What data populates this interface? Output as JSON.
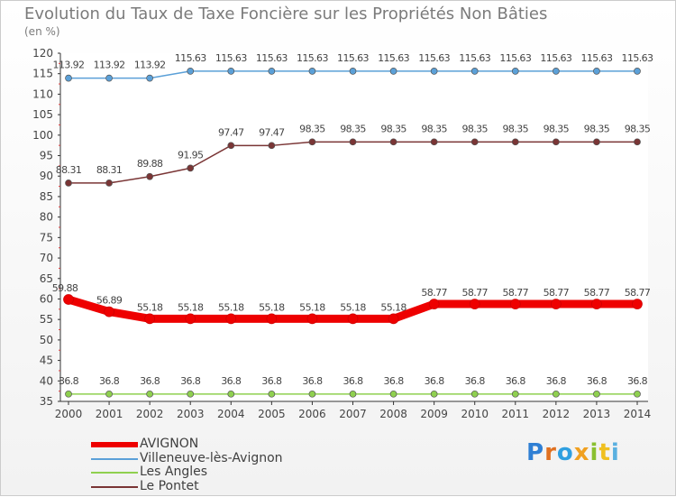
{
  "chart_data": {
    "type": "line",
    "title": "Evolution du Taux de Taxe Foncière sur les Propriétés Non Bâties",
    "ylabel": "(en %)",
    "xlabel": "",
    "x": [
      "2000",
      "2001",
      "2002",
      "2003",
      "2004",
      "2005",
      "2006",
      "2007",
      "2008",
      "2009",
      "2010",
      "2011",
      "2012",
      "2013",
      "2014"
    ],
    "ylim": [
      35,
      120
    ],
    "yticks": [
      "35",
      "40",
      "45",
      "50",
      "55",
      "60",
      "65",
      "70",
      "75",
      "80",
      "85",
      "90",
      "95",
      "100",
      "105",
      "110",
      "115",
      "120"
    ],
    "series": [
      {
        "name": "AVIGNON",
        "color": "#ee0000",
        "values": [
          59.88,
          56.89,
          55.18,
          55.18,
          55.18,
          55.18,
          55.18,
          55.18,
          55.18,
          58.77,
          58.77,
          58.77,
          58.77,
          58.77,
          58.77
        ],
        "labels": [
          "59.88",
          "56.89",
          "55.18",
          "55.18",
          "55.18",
          "55.18",
          "55.18",
          "55.18",
          "55.18",
          "58.77",
          "58.77",
          "58.77",
          "58.77",
          "58.77",
          "58.77"
        ]
      },
      {
        "name": "Villeneuve-lès-Avignon",
        "color": "#5ba0d8",
        "values": [
          113.92,
          113.92,
          113.92,
          115.63,
          115.63,
          115.63,
          115.63,
          115.63,
          115.63,
          115.63,
          115.63,
          115.63,
          115.63,
          115.63,
          115.63
        ],
        "labels": [
          "113.92",
          "113.92",
          "113.92",
          "115.63",
          "115.63",
          "115.63",
          "115.63",
          "115.63",
          "115.63",
          "115.63",
          "115.63",
          "115.63",
          "115.63",
          "115.63",
          "115.63"
        ]
      },
      {
        "name": "Les Angles",
        "color": "#8fd04f",
        "values": [
          36.8,
          36.8,
          36.8,
          36.8,
          36.8,
          36.8,
          36.8,
          36.8,
          36.8,
          36.8,
          36.8,
          36.8,
          36.8,
          36.8,
          36.8
        ],
        "labels": [
          "36.8",
          "36.8",
          "36.8",
          "36.8",
          "36.8",
          "36.8",
          "36.8",
          "36.8",
          "36.8",
          "36.8",
          "36.8",
          "36.8",
          "36.8",
          "36.8",
          "36.8"
        ]
      },
      {
        "name": "Le Pontet",
        "color": "#7a3535",
        "values": [
          88.31,
          88.31,
          89.88,
          91.95,
          97.47,
          97.47,
          98.35,
          98.35,
          98.35,
          98.35,
          98.35,
          98.35,
          98.35,
          98.35,
          98.35
        ],
        "labels": [
          "88.31",
          "88.31",
          "89.88",
          "91.95",
          "97.47",
          "97.47",
          "98.35",
          "98.35",
          "98.35",
          "98.35",
          "98.35",
          "98.35",
          "98.35",
          "98.35",
          "98.35"
        ]
      }
    ]
  },
  "brand": [
    "P",
    "r",
    "o",
    "x",
    "i",
    "t",
    "i"
  ]
}
